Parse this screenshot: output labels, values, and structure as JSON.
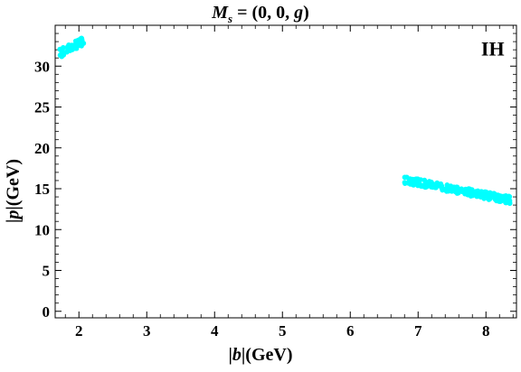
{
  "chart_data": {
    "type": "scatter",
    "title": "M_s = (0, 0, g)",
    "title_parts": {
      "main": "M",
      "sub": "s",
      "rest": " = (0, 0, ",
      "italic": "g",
      "close": ")"
    },
    "xlabel": "|b|(GeV)",
    "xlabel_parts": {
      "bar_open": "|",
      "var": "b",
      "bar_close": "|",
      "unit": "(GeV)"
    },
    "ylabel": "|p|(GeV)",
    "ylabel_parts": {
      "bar_open": "|",
      "var": "p",
      "bar_close": "|",
      "unit": "(GeV)"
    },
    "xlim": [
      1.65,
      8.45
    ],
    "ylim": [
      -0.8,
      35.0
    ],
    "xticks": [
      2,
      3,
      4,
      5,
      6,
      7,
      8
    ],
    "yticks": [
      0,
      5,
      10,
      15,
      20,
      25,
      30
    ],
    "annotation": "IH",
    "grid": false,
    "point_color": "#00ffff",
    "series": [
      {
        "clusters": [
          {
            "x_range": [
              1.72,
              2.07
            ],
            "y_at_start": 31.6,
            "y_at_end": 33.1,
            "spread": 0.55,
            "count": 60
          },
          {
            "x_range": [
              6.8,
              8.36
            ],
            "y_at_start": 16.1,
            "y_at_end": 13.6,
            "spread": 0.45,
            "count": 220
          }
        ]
      }
    ]
  }
}
